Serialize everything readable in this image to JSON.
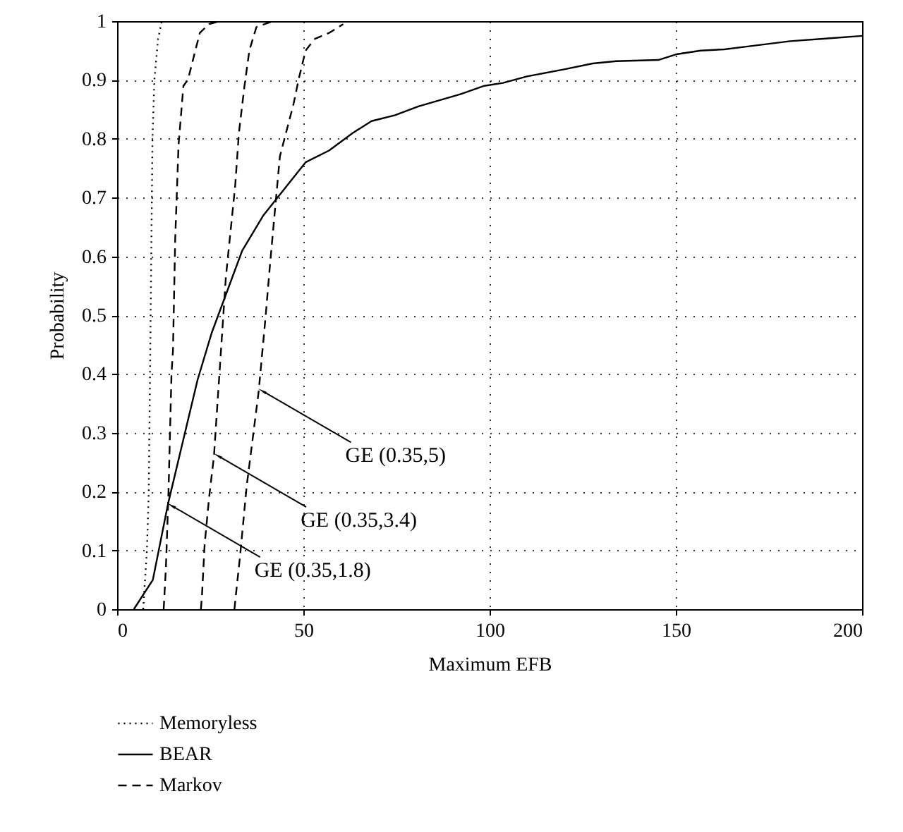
{
  "chart_data": {
    "type": "line",
    "xlabel": "Maximum EFB",
    "ylabel": "Probability",
    "xlim": [
      0,
      200
    ],
    "ylim": [
      0,
      1
    ],
    "xticks": [
      0,
      50,
      100,
      150,
      200
    ],
    "yticks": [
      0,
      0.1,
      0.2,
      0.3,
      0.4,
      0.5,
      0.6,
      0.7,
      0.8,
      0.9,
      1
    ],
    "grid": true,
    "legend": "bottom",
    "marker": "none",
    "annotations": [
      {
        "text": "GE (0.35,5)",
        "x": 39.3,
        "y": 0.37
      },
      {
        "text": "GE (0.35,3.4)",
        "x": 27.3,
        "y": 0.26
      },
      {
        "text": "GE (0.35,1.8)",
        "x": 14.9,
        "y": 0.175
      }
    ],
    "series": [
      {
        "name": "Memoryless",
        "color": "#000000",
        "line_style": "dotted",
        "x": [
          7,
          8,
          8.5,
          9,
          9.5,
          10,
          11,
          12
        ],
        "values": [
          0,
          0.1,
          0.2,
          0.5,
          0.8,
          0.9,
          0.97,
          1
        ]
      },
      {
        "name": "BEAR",
        "color": "#000000",
        "line_style": "solid",
        "x": [
          4.5,
          9.6,
          13.7,
          21.6,
          25.4,
          33.6,
          39.3,
          50.6,
          56.9,
          63.3,
          68.3,
          74.6,
          80.9,
          92.3,
          98.6,
          103.6,
          110,
          120,
          127.7,
          134,
          145.3,
          150.4,
          156.7,
          163,
          169.3,
          180.7,
          189.5,
          200
        ],
        "values": [
          0,
          0.05,
          0.18,
          0.39,
          0.47,
          0.61,
          0.67,
          0.76,
          0.78,
          0.81,
          0.83,
          0.84,
          0.855,
          0.876,
          0.89,
          0.895,
          0.906,
          0.918,
          0.928,
          0.932,
          0.934,
          0.944,
          0.95,
          0.952,
          0.957,
          0.966,
          0.97,
          0.975
        ]
      },
      {
        "name": "Markov",
        "color": "#000000",
        "line_style": "dashed",
        "x": [
          12.5,
          13.1,
          13.8,
          14.6,
          15,
          15.6,
          16.5,
          17.8,
          19,
          22.2,
          24.7,
          27.5
        ],
        "values": [
          0,
          0.07,
          0.2,
          0.4,
          0.44,
          0.63,
          0.79,
          0.89,
          0.9,
          0.98,
          0.995,
          1
        ]
      },
      {
        "color": "#000000",
        "line_style": "dashed",
        "x": [
          22.5,
          22.8,
          23.5,
          24.7,
          26,
          28.2,
          29.2,
          31.7,
          32.7,
          34.2,
          35.5,
          37.4,
          41.8
        ],
        "values": [
          0,
          0.025,
          0.11,
          0.19,
          0.26,
          0.47,
          0.565,
          0.72,
          0.81,
          0.89,
          0.95,
          0.99,
          1
        ]
      },
      {
        "color": "#000000",
        "line_style": "dashed",
        "x": [
          31.5,
          31.9,
          33,
          34.8,
          38,
          39.9,
          41.1,
          43.7,
          47.4,
          48.7,
          50.6,
          53.1,
          56.9,
          60.7
        ],
        "values": [
          0,
          0.025,
          0.09,
          0.21,
          0.37,
          0.5,
          0.59,
          0.77,
          0.86,
          0.9,
          0.95,
          0.97,
          0.98,
          0.995
        ]
      }
    ]
  }
}
